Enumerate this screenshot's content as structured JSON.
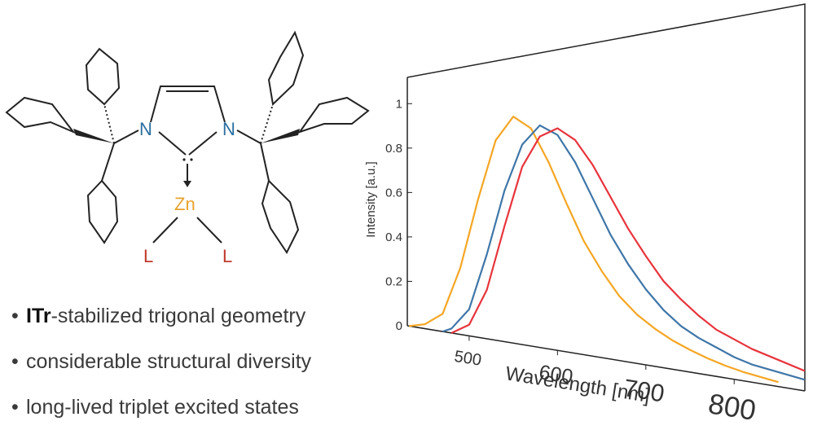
{
  "structure": {
    "atoms": {
      "n_left": "N",
      "n_right": "N",
      "metal": "Zn",
      "ligand_left": "L",
      "ligand_right": "L"
    },
    "colors": {
      "nitrogen": "#2a6fa0",
      "metal": "#e8a22c",
      "ligand": "#c0392b",
      "bond": "#222222"
    }
  },
  "bullets": [
    {
      "bold": "ITr",
      "rest": "-stabilized trigonal geometry"
    },
    {
      "bold": "",
      "rest": "considerable structural diversity"
    },
    {
      "bold": "",
      "rest": "long-lived triplet excited states"
    }
  ],
  "chart_data": {
    "type": "line",
    "title": "",
    "xlabel": "Wavelength [nm]",
    "ylabel": "Intensity [a.u.]",
    "xlim": [
      430,
      880
    ],
    "ylim": [
      0,
      1.1
    ],
    "xticks": [
      "500",
      "600",
      "700",
      "800"
    ],
    "yticks": [
      "0",
      "0.2",
      "0.4",
      "0.6",
      "0.8",
      "1"
    ],
    "grid": false,
    "series": [
      {
        "color": "#f5a623",
        "x": [
          432,
          450,
          470,
          490,
          510,
          530,
          550,
          570,
          590,
          610,
          630,
          650,
          670,
          690,
          710,
          730,
          750,
          770,
          790,
          810,
          830,
          850
        ],
        "y": [
          0.0,
          0.02,
          0.08,
          0.3,
          0.62,
          0.9,
          1.02,
          0.98,
          0.84,
          0.67,
          0.51,
          0.39,
          0.29,
          0.22,
          0.17,
          0.13,
          0.1,
          0.075,
          0.055,
          0.04,
          0.03,
          0.02
        ]
      },
      {
        "color": "#3f76a8",
        "x": [
          470,
          480,
          500,
          520,
          540,
          560,
          580,
          600,
          620,
          640,
          660,
          680,
          700,
          720,
          740,
          760,
          780,
          800,
          820,
          840,
          860,
          880
        ],
        "y": [
          0.0,
          0.02,
          0.12,
          0.38,
          0.68,
          0.9,
          1.0,
          0.97,
          0.86,
          0.71,
          0.56,
          0.44,
          0.34,
          0.26,
          0.2,
          0.16,
          0.13,
          0.1,
          0.08,
          0.07,
          0.06,
          0.05
        ]
      },
      {
        "color": "#e8343c",
        "x": [
          480,
          500,
          520,
          540,
          560,
          580,
          600,
          620,
          640,
          660,
          680,
          700,
          720,
          740,
          760,
          780,
          800,
          820,
          840,
          860,
          880
        ],
        "y": [
          0.0,
          0.05,
          0.22,
          0.52,
          0.8,
          0.95,
          1.0,
          0.96,
          0.86,
          0.73,
          0.6,
          0.49,
          0.39,
          0.32,
          0.26,
          0.21,
          0.18,
          0.15,
          0.13,
          0.11,
          0.09
        ]
      }
    ]
  }
}
